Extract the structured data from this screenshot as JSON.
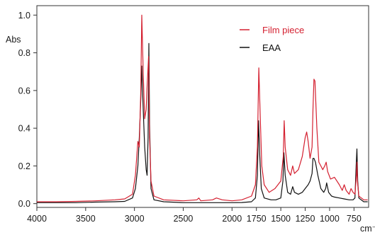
{
  "chart_data": {
    "type": "line",
    "title": "",
    "xlabel": "cm⁻¹",
    "ylabel": "Abs",
    "xlim": [
      4000,
      600
    ],
    "ylim": [
      -0.02,
      1.05
    ],
    "x_reversed": true,
    "grid": false,
    "legend_position": "top-right",
    "x_ticks": [
      4000,
      3500,
      3000,
      2500,
      2000,
      1750,
      1500,
      1250,
      1000,
      750
    ],
    "y_ticks": [
      0.0,
      0.2,
      0.4,
      0.6,
      0.8,
      1.0
    ],
    "x_tick_labels": [
      "4000",
      "3500",
      "3000",
      "2500",
      "2000",
      "1750",
      "1500",
      "1250",
      "1000",
      "750"
    ],
    "y_tick_labels": [
      "0.0",
      "0.2",
      "0.4",
      "0.6",
      "0.8",
      "1.0"
    ],
    "series": [
      {
        "name": "Film piece",
        "color": "#d42030",
        "points": [
          [
            4000,
            0.01
          ],
          [
            3800,
            0.01
          ],
          [
            3600,
            0.012
          ],
          [
            3400,
            0.015
          ],
          [
            3200,
            0.02
          ],
          [
            3100,
            0.025
          ],
          [
            3020,
            0.05
          ],
          [
            2990,
            0.15
          ],
          [
            2965,
            0.33
          ],
          [
            2950,
            0.3
          ],
          [
            2935,
            0.6
          ],
          [
            2925,
            1.0
          ],
          [
            2910,
            0.7
          ],
          [
            2895,
            0.45
          ],
          [
            2880,
            0.5
          ],
          [
            2870,
            0.62
          ],
          [
            2855,
            0.78
          ],
          [
            2845,
            0.35
          ],
          [
            2830,
            0.12
          ],
          [
            2800,
            0.04
          ],
          [
            2700,
            0.02
          ],
          [
            2500,
            0.015
          ],
          [
            2360,
            0.02
          ],
          [
            2340,
            0.03
          ],
          [
            2320,
            0.015
          ],
          [
            2200,
            0.02
          ],
          [
            2160,
            0.03
          ],
          [
            2100,
            0.02
          ],
          [
            2000,
            0.015
          ],
          [
            1900,
            0.02
          ],
          [
            1800,
            0.04
          ],
          [
            1760,
            0.1
          ],
          [
            1740,
            0.3
          ],
          [
            1725,
            0.72
          ],
          [
            1710,
            0.45
          ],
          [
            1695,
            0.2
          ],
          [
            1670,
            0.1
          ],
          [
            1620,
            0.06
          ],
          [
            1560,
            0.08
          ],
          [
            1500,
            0.12
          ],
          [
            1475,
            0.25
          ],
          [
            1465,
            0.44
          ],
          [
            1455,
            0.3
          ],
          [
            1430,
            0.18
          ],
          [
            1400,
            0.15
          ],
          [
            1378,
            0.2
          ],
          [
            1360,
            0.16
          ],
          [
            1320,
            0.18
          ],
          [
            1280,
            0.25
          ],
          [
            1250,
            0.35
          ],
          [
            1235,
            0.38
          ],
          [
            1220,
            0.33
          ],
          [
            1200,
            0.24
          ],
          [
            1180,
            0.3
          ],
          [
            1170,
            0.5
          ],
          [
            1160,
            0.66
          ],
          [
            1150,
            0.65
          ],
          [
            1130,
            0.4
          ],
          [
            1110,
            0.22
          ],
          [
            1090,
            0.2
          ],
          [
            1070,
            0.18
          ],
          [
            1050,
            0.2
          ],
          [
            1035,
            0.22
          ],
          [
            1020,
            0.17
          ],
          [
            990,
            0.13
          ],
          [
            950,
            0.14
          ],
          [
            900,
            0.1
          ],
          [
            870,
            0.07
          ],
          [
            850,
            0.1
          ],
          [
            830,
            0.07
          ],
          [
            800,
            0.05
          ],
          [
            780,
            0.08
          ],
          [
            760,
            0.06
          ],
          [
            740,
            0.05
          ],
          [
            725,
            0.15
          ],
          [
            720,
            0.22
          ],
          [
            715,
            0.12
          ],
          [
            700,
            0.04
          ],
          [
            650,
            0.02
          ],
          [
            610,
            0.02
          ]
        ]
      },
      {
        "name": "EAA",
        "color": "#111111",
        "points": [
          [
            4000,
            0.005
          ],
          [
            3800,
            0.005
          ],
          [
            3600,
            0.005
          ],
          [
            3400,
            0.008
          ],
          [
            3200,
            0.01
          ],
          [
            3100,
            0.012
          ],
          [
            3020,
            0.03
          ],
          [
            2990,
            0.08
          ],
          [
            2965,
            0.2
          ],
          [
            2950,
            0.35
          ],
          [
            2935,
            0.55
          ],
          [
            2925,
            0.73
          ],
          [
            2910,
            0.5
          ],
          [
            2895,
            0.3
          ],
          [
            2880,
            0.18
          ],
          [
            2870,
            0.15
          ],
          [
            2860,
            0.35
          ],
          [
            2852,
            0.85
          ],
          [
            2845,
            0.42
          ],
          [
            2830,
            0.08
          ],
          [
            2800,
            0.02
          ],
          [
            2700,
            0.01
          ],
          [
            2500,
            0.005
          ],
          [
            2200,
            0.005
          ],
          [
            2000,
            0.005
          ],
          [
            1900,
            0.006
          ],
          [
            1800,
            0.01
          ],
          [
            1760,
            0.03
          ],
          [
            1740,
            0.15
          ],
          [
            1728,
            0.44
          ],
          [
            1715,
            0.25
          ],
          [
            1700,
            0.08
          ],
          [
            1670,
            0.03
          ],
          [
            1600,
            0.02
          ],
          [
            1550,
            0.02
          ],
          [
            1500,
            0.03
          ],
          [
            1478,
            0.12
          ],
          [
            1468,
            0.27
          ],
          [
            1455,
            0.15
          ],
          [
            1430,
            0.06
          ],
          [
            1400,
            0.05
          ],
          [
            1378,
            0.09
          ],
          [
            1360,
            0.06
          ],
          [
            1320,
            0.05
          ],
          [
            1280,
            0.06
          ],
          [
            1250,
            0.08
          ],
          [
            1220,
            0.1
          ],
          [
            1200,
            0.12
          ],
          [
            1180,
            0.16
          ],
          [
            1170,
            0.24
          ],
          [
            1160,
            0.24
          ],
          [
            1145,
            0.22
          ],
          [
            1120,
            0.15
          ],
          [
            1090,
            0.08
          ],
          [
            1060,
            0.06
          ],
          [
            1040,
            0.08
          ],
          [
            1030,
            0.11
          ],
          [
            1010,
            0.06
          ],
          [
            980,
            0.04
          ],
          [
            950,
            0.035
          ],
          [
            900,
            0.03
          ],
          [
            850,
            0.025
          ],
          [
            800,
            0.02
          ],
          [
            760,
            0.02
          ],
          [
            740,
            0.03
          ],
          [
            728,
            0.2
          ],
          [
            720,
            0.29
          ],
          [
            712,
            0.12
          ],
          [
            700,
            0.03
          ],
          [
            650,
            0.01
          ],
          [
            610,
            0.01
          ]
        ]
      }
    ]
  }
}
